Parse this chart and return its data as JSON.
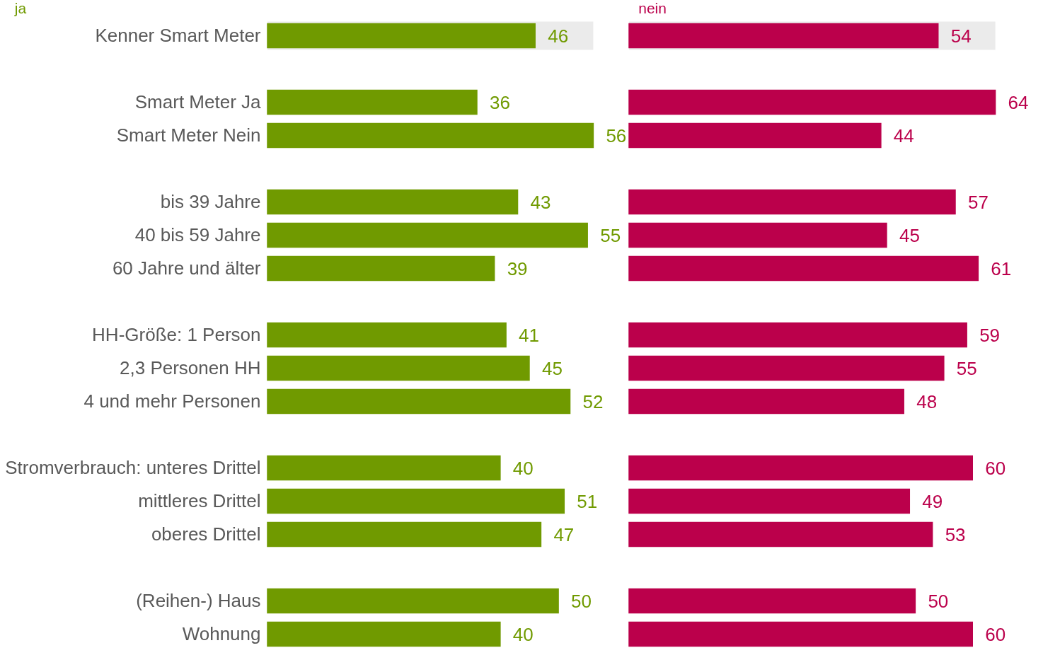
{
  "chart_data": [
    {
      "type": "bar",
      "orientation": "horizontal",
      "title": "ja",
      "color": "#709a00",
      "data_labels": true,
      "tick_labels": "y",
      "categories": [
        "Kenner Smart Meter",
        null,
        "Smart Meter Ja",
        "Smart Meter Nein",
        null,
        "bis 39 Jahre",
        "40 bis 59 Jahre",
        "60 Jahre und älter",
        null,
        "HH-Größe: 1 Person",
        "2,3 Personen HH",
        "4 und mehr Personen",
        null,
        "Stromverbrauch: unteres Drittel",
        "mittleres Drittel",
        "oberes Drittel",
        null,
        "(Reihen-) Haus",
        "Wohnung"
      ],
      "values": [
        46,
        null,
        36,
        56,
        null,
        43,
        55,
        39,
        null,
        41,
        45,
        52,
        null,
        40,
        51,
        47,
        null,
        50,
        40
      ],
      "bands": [
        {
          "axis": "y",
          "from": "Kenner Smart Meter",
          "to": "Kenner Smart Meter",
          "color": "#ebebeb"
        }
      ]
    },
    {
      "type": "bar",
      "orientation": "horizontal",
      "title": "nein",
      "color": "#bb004b",
      "data_labels": true,
      "tick_labels": false,
      "categories": [
        "Kenner Smart Meter",
        null,
        "Smart Meter Ja",
        "Smart Meter Nein",
        null,
        "bis 39 Jahre",
        "40 bis 59 Jahre",
        "60 Jahre und älter",
        null,
        "HH-Größe: 1 Person",
        "2,3 Personen HH",
        "4 und mehr Personen",
        null,
        "Stromverbrauch: unteres Drittel",
        "mittleres Drittel",
        "oberes Drittel",
        null,
        "(Reihen-) Haus",
        "Wohnung"
      ],
      "values": [
        54,
        null,
        64,
        44,
        null,
        57,
        45,
        61,
        null,
        59,
        55,
        48,
        null,
        60,
        49,
        53,
        null,
        50,
        60
      ],
      "bands": [
        {
          "axis": "y",
          "from": "Kenner Smart Meter",
          "to": "Kenner Smart Meter",
          "color": "#ebebeb"
        }
      ]
    }
  ]
}
